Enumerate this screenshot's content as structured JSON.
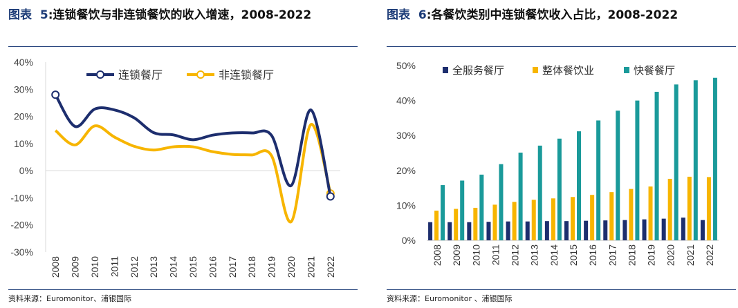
{
  "source_text": "资料来源：Euromonitor、浦银国际",
  "source_text_right": "资料来源：Euromonitor 、浦银国际",
  "chart_data": [
    {
      "type": "line",
      "figure_label": "图表",
      "figure_number": "5",
      "title": ":连锁餐饮与非连锁餐饮的收入增速，2008-2022",
      "categories": [
        "2008",
        "2009",
        "2010",
        "2011",
        "2012",
        "2013",
        "2014",
        "2015",
        "2016",
        "2017",
        "2018",
        "2019",
        "2020",
        "2021",
        "2022"
      ],
      "series": [
        {
          "name": "连锁餐厅",
          "color": "#1d2e6e",
          "values": [
            28.0,
            16.3,
            22.7,
            22.4,
            19.5,
            14.0,
            13.2,
            11.4,
            13.1,
            13.9,
            13.9,
            13.0,
            -5.5,
            22.4,
            -9.5
          ]
        },
        {
          "name": "非连锁餐厅",
          "color": "#f7b500",
          "values": [
            14.8,
            9.5,
            16.5,
            12.4,
            9.0,
            7.6,
            8.8,
            8.8,
            7.0,
            6.0,
            5.8,
            5.5,
            -18.8,
            17.0,
            -8.4
          ]
        }
      ],
      "yticks": [
        "40%",
        "30%",
        "20%",
        "10%",
        "0%",
        "-10%",
        "-20%",
        "-30%"
      ],
      "ylim": [
        -30,
        40
      ],
      "legend": "top"
    },
    {
      "type": "bar",
      "figure_label": "图表",
      "figure_number": "6",
      "title": ":各餐饮类别中连锁餐饮收入占比，2008-2022",
      "categories": [
        "2008",
        "2009",
        "2010",
        "2011",
        "2012",
        "2013",
        "2014",
        "2015",
        "2016",
        "2017",
        "2018",
        "2019",
        "2020",
        "2021",
        "2022"
      ],
      "series": [
        {
          "name": "全服务餐厅",
          "color": "#1d2e6e",
          "values": [
            5.2,
            5.2,
            5.2,
            5.3,
            5.4,
            5.4,
            5.5,
            5.5,
            5.6,
            5.7,
            5.8,
            6.0,
            6.2,
            6.5,
            5.8
          ]
        },
        {
          "name": "整体餐饮业",
          "color": "#f7b500",
          "values": [
            8.5,
            9.0,
            9.3,
            10.2,
            11.0,
            11.6,
            12.0,
            12.4,
            13.0,
            13.8,
            14.7,
            15.4,
            17.6,
            18.2,
            18.1
          ]
        },
        {
          "name": "快餐餐厅",
          "color": "#1a9a9a",
          "values": [
            15.8,
            17.1,
            18.8,
            21.8,
            25.1,
            27.1,
            29.1,
            31.2,
            34.3,
            37.1,
            40.0,
            42.5,
            44.6,
            45.8,
            46.5
          ]
        }
      ],
      "yticks": [
        "50%",
        "40%",
        "30%",
        "20%",
        "10%",
        "0%"
      ],
      "ylim": [
        0,
        50
      ],
      "legend": "top-left"
    }
  ]
}
